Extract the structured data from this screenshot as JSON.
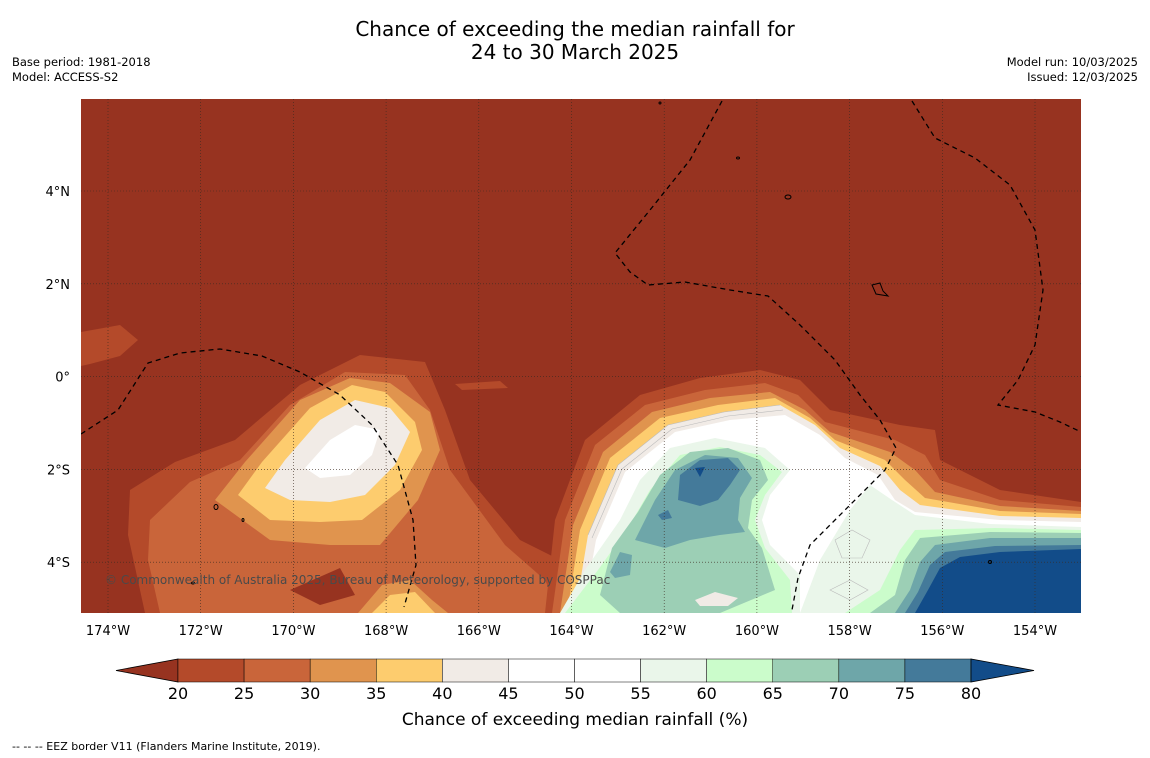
{
  "title_line1": "Chance of exceeding the median rainfall for",
  "title_line2": "24 to 30 March 2025",
  "base_period": "Base period: 1981-2018",
  "model": "Model: ACCESS-S2",
  "model_run": "Model run: 10/03/2025",
  "issued": "Issued: 12/03/2025",
  "copyright": "© Commonwealth of Australia 2025, Bureau of Meteorology, supported by COSPPac",
  "footnote": "--  --  -- EEZ border V11 (Flanders Marine Institute, 2019).",
  "map": {
    "lon_ticks": [
      "174°W",
      "172°W",
      "170°W",
      "168°W",
      "166°W",
      "164°W",
      "162°W",
      "160°W",
      "158°W",
      "156°W",
      "154°W"
    ],
    "lat_ticks": [
      "4°N",
      "2°N",
      "0°",
      "2°S",
      "4°S"
    ],
    "base_color": "#973320"
  },
  "colorbar": {
    "label": "Chance of exceeding median rainfall (%)",
    "ticks": [
      "20",
      "25",
      "30",
      "35",
      "40",
      "45",
      "50",
      "55",
      "60",
      "65",
      "70",
      "75",
      "80"
    ],
    "colors": [
      "#973320",
      "#b44a2a",
      "#c9653a",
      "#e0944e",
      "#fdcc6e",
      "#f1ebe6",
      "#ffffff",
      "#ffffff",
      "#eaf6ea",
      "#cbfccb",
      "#9ccfb5",
      "#6ea6a9",
      "#447a9a",
      "#124c89"
    ]
  }
}
